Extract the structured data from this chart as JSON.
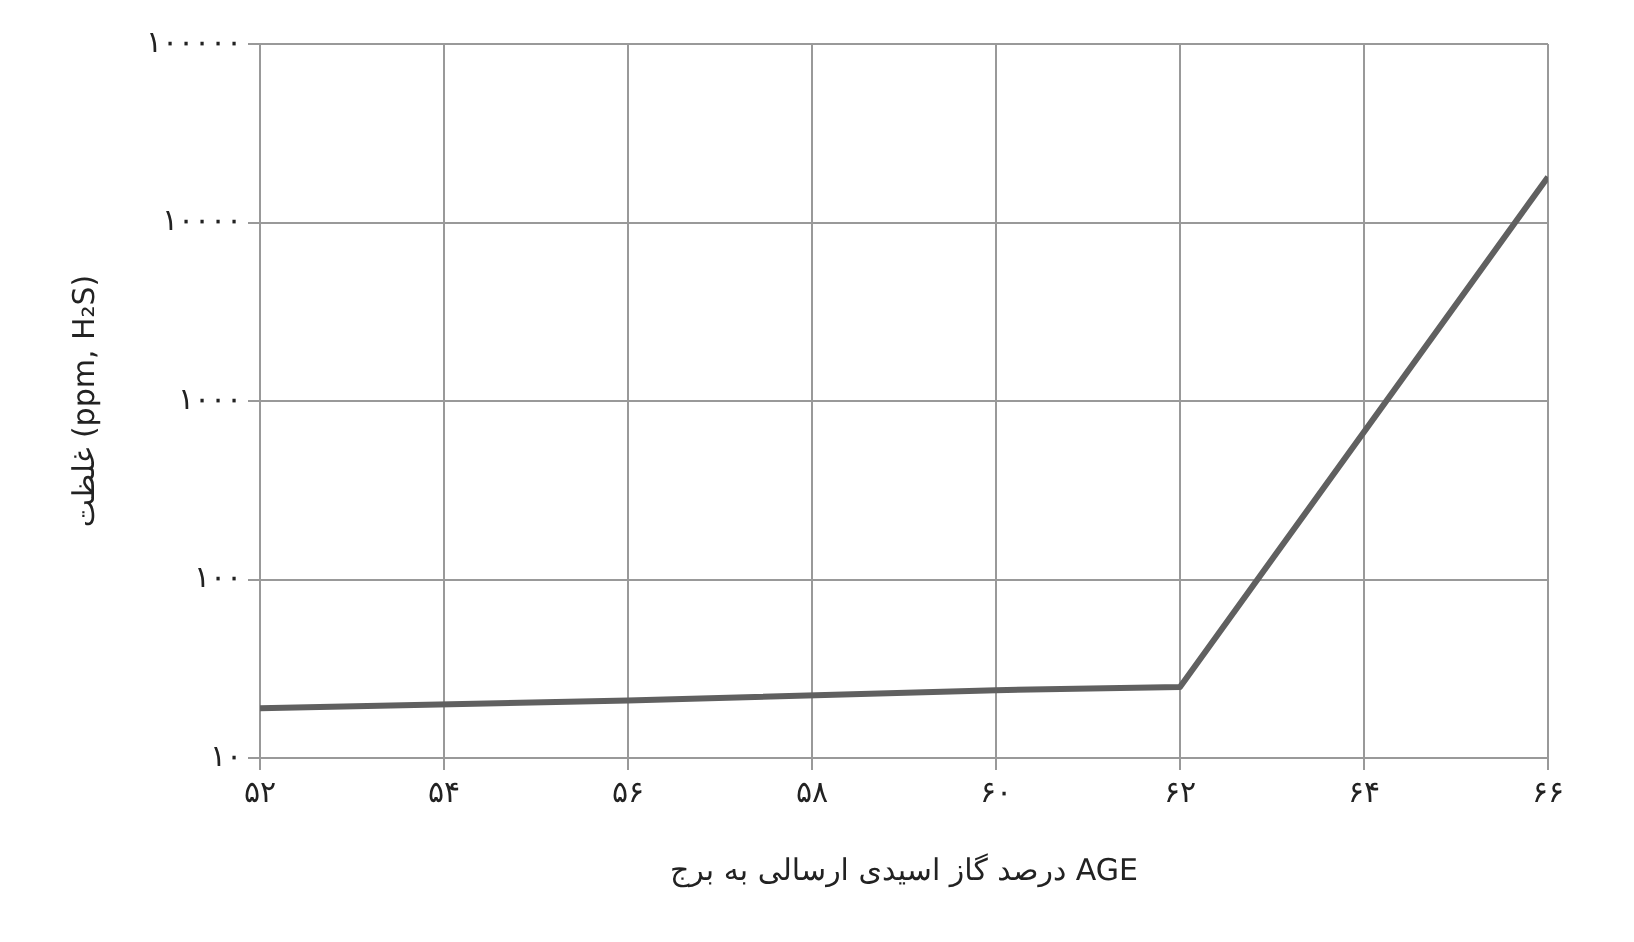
{
  "chart_data": {
    "type": "line",
    "xlabel": "درصد گاز اسیدی ارسالی به برج AGE",
    "ylabel": "غلظت (ppm, H₂S)",
    "x": [
      52,
      56,
      60,
      62,
      66
    ],
    "series": [
      {
        "color": "#606060",
        "values": [
          19,
          21,
          24,
          25,
          18000
        ]
      }
    ],
    "xlim": [
      52,
      66
    ],
    "xticks": [
      {
        "value": 52,
        "label": "۵۲"
      },
      {
        "value": 54,
        "label": "۵۴"
      },
      {
        "value": 56,
        "label": "۵۶"
      },
      {
        "value": 58,
        "label": "۵۸"
      },
      {
        "value": 60,
        "label": "۶۰"
      },
      {
        "value": 62,
        "label": "۶۲"
      },
      {
        "value": 64,
        "label": "۶۴"
      },
      {
        "value": 66,
        "label": "۶۶"
      }
    ],
    "ylim": [
      10,
      100000
    ],
    "yticks": [
      {
        "value": 10,
        "label": "۱۰"
      },
      {
        "value": 100,
        "label": "۱۰۰"
      },
      {
        "value": 1000,
        "label": "۱۰۰۰"
      },
      {
        "value": 10000,
        "label": "۱۰۰۰۰"
      },
      {
        "value": 100000,
        "label": "۱۰۰۰۰۰"
      }
    ],
    "log": true,
    "grid": true,
    "legend": false,
    "marker": "none",
    "line_style": "solid"
  }
}
